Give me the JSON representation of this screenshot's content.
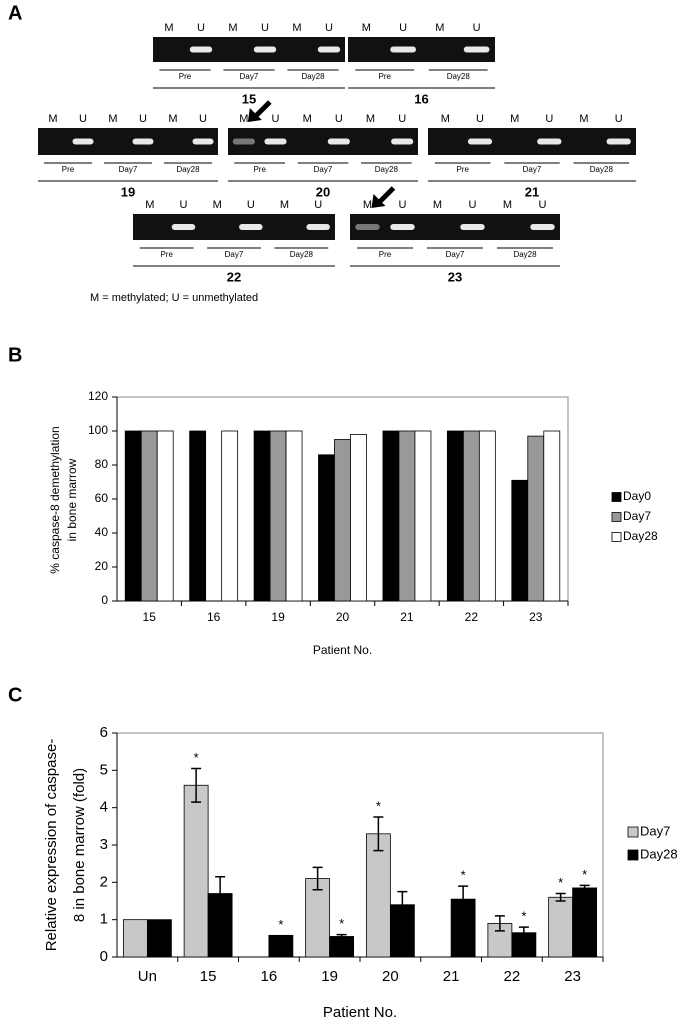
{
  "panel_labels": [
    "A",
    "B",
    "C"
  ],
  "gels": [
    {
      "patient": "15",
      "lanes": [
        "M",
        "U",
        "M",
        "U",
        "M",
        "U"
      ],
      "groups": [
        "Pre",
        "Day7",
        "Day28"
      ]
    },
    {
      "patient": "16",
      "lanes": [
        "M",
        "U",
        "M",
        "U"
      ],
      "groups": [
        "Pre",
        "Day28"
      ]
    },
    {
      "patient": "19",
      "lanes": [
        "M",
        "U",
        "M",
        "U",
        "M",
        "U"
      ],
      "groups": [
        "Pre",
        "Day7",
        "Day28"
      ]
    },
    {
      "patient": "20",
      "lanes": [
        "M",
        "U",
        "M",
        "U",
        "M",
        "U"
      ],
      "groups": [
        "Pre",
        "Day7",
        "Day28"
      ]
    },
    {
      "patient": "21",
      "lanes": [
        "M",
        "U",
        "M",
        "U",
        "M",
        "U"
      ],
      "groups": [
        "Pre",
        "Day7",
        "Day28"
      ]
    },
    {
      "patient": "22",
      "lanes": [
        "M",
        "U",
        "M",
        "U",
        "M",
        "U"
      ],
      "groups": [
        "Pre",
        "Day7",
        "Day28"
      ]
    },
    {
      "patient": "23",
      "lanes": [
        "M",
        "U",
        "M",
        "U",
        "M",
        "U"
      ],
      "groups": [
        "Pre",
        "Day7",
        "Day28"
      ]
    }
  ],
  "gel_legend": "M = methylated; U = unmethylated",
  "chart_data": [
    {
      "type": "bar",
      "ylabel": [
        "% caspase-8 demethylation",
        "in bone marrow"
      ],
      "xlabel": "Patient No.",
      "categories": [
        "15",
        "16",
        "19",
        "20",
        "21",
        "22",
        "23"
      ],
      "series": [
        {
          "name": "Day0",
          "color": "#000000",
          "values": [
            100,
            100,
            100,
            86,
            100,
            100,
            71
          ]
        },
        {
          "name": "Day7",
          "color": "#999999",
          "values": [
            100,
            null,
            100,
            95,
            100,
            100,
            97
          ]
        },
        {
          "name": "Day28",
          "color": "#ffffff",
          "values": [
            100,
            100,
            100,
            98,
            100,
            100,
            100
          ]
        }
      ],
      "ylim": [
        0,
        120
      ],
      "yticks": [
        0,
        20,
        40,
        60,
        80,
        100,
        120
      ],
      "legend": "right"
    },
    {
      "type": "bar",
      "ylabel": [
        "Relative expression of caspase-",
        "8 in bone marrow (fold)"
      ],
      "xlabel": "Patient No.",
      "categories": [
        "Un",
        "15",
        "16",
        "19",
        "20",
        "21",
        "22",
        "23"
      ],
      "series": [
        {
          "name": "Day7",
          "color": "#c8c8c8",
          "values": [
            1,
            4.6,
            null,
            2.1,
            3.3,
            null,
            0.9,
            1.6
          ],
          "errors": [
            null,
            0.45,
            null,
            0.3,
            0.45,
            null,
            0.2,
            0.1
          ],
          "markers": [
            null,
            "*",
            null,
            null,
            "*",
            null,
            null,
            "*"
          ]
        },
        {
          "name": "Day28",
          "color": "#000000",
          "values": [
            1,
            1.7,
            0.58,
            0.55,
            1.4,
            1.55,
            0.65,
            1.85
          ],
          "errors": [
            null,
            0.45,
            null,
            0.05,
            0.35,
            0.35,
            0.15,
            0.07
          ],
          "markers": [
            null,
            null,
            "*",
            "*",
            null,
            "*",
            "*",
            "*"
          ]
        }
      ],
      "ylim": [
        0,
        6
      ],
      "yticks": [
        0,
        1,
        2,
        3,
        4,
        5,
        6
      ],
      "legend": "right"
    }
  ]
}
